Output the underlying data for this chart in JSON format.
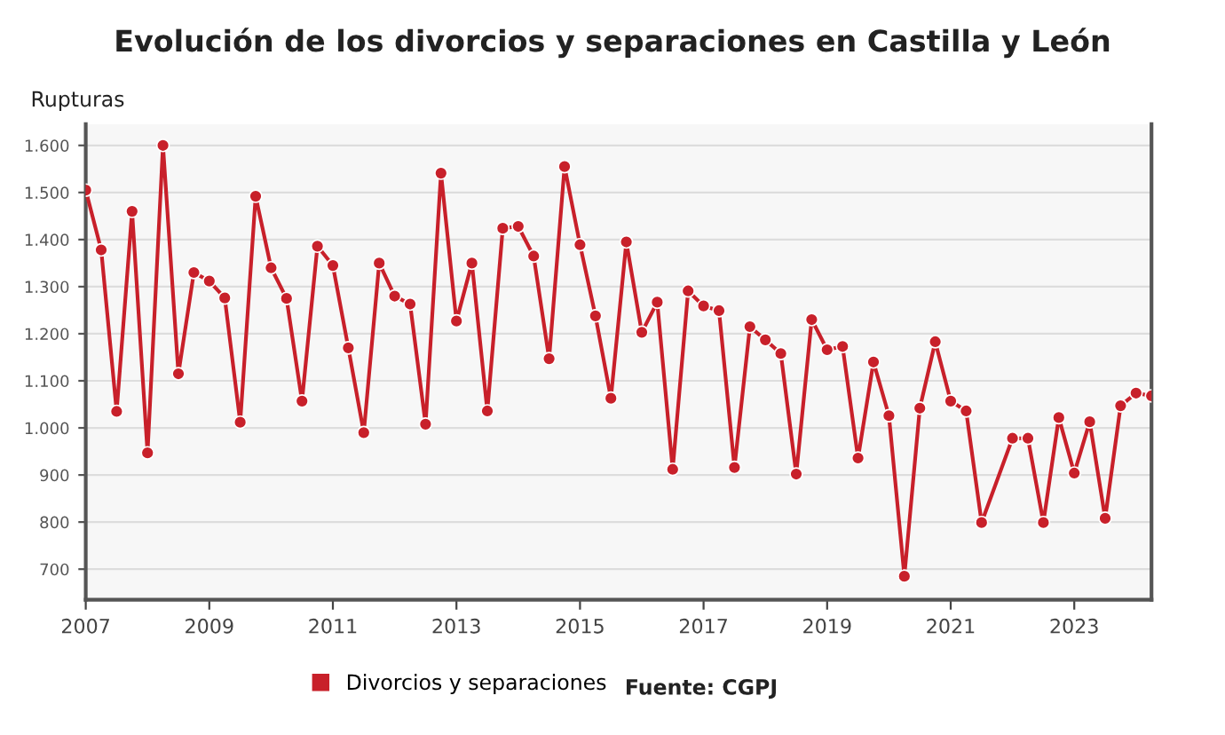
{
  "chart_data": {
    "type": "line",
    "title": "Evolución de los divorcios y separaciones en Castilla y León",
    "ylabel": "Rupturas",
    "annotations": [
      "Fuente: CGPJ"
    ],
    "xlim": [
      2007,
      2024.25
    ],
    "xticks": [
      2007,
      2009,
      2011,
      2013,
      2015,
      2017,
      2019,
      2021,
      2023
    ],
    "ylim": [
      635,
      1645
    ],
    "yticks": [
      {
        "value": 700,
        "label": "700"
      },
      {
        "value": 800,
        "label": "800"
      },
      {
        "value": 900,
        "label": "900"
      },
      {
        "value": 1000,
        "label": "1.000"
      },
      {
        "value": 1100,
        "label": "1.100"
      },
      {
        "value": 1200,
        "label": "1.200"
      },
      {
        "value": 1300,
        "label": "1.300"
      },
      {
        "value": 1400,
        "label": "1.400"
      },
      {
        "value": 1500,
        "label": "1.500"
      },
      {
        "value": 1600,
        "label": "1.600"
      }
    ],
    "grid": "y",
    "legend": "bottom",
    "marker": "circle",
    "line_style": "solid",
    "series": [
      {
        "name": "Divorcios y separaciones",
        "color": "#c8202a",
        "x": [
          2007,
          2007.25,
          2007.5,
          2007.75,
          2008,
          2008.25,
          2008.5,
          2008.75,
          2009,
          2009.25,
          2009.5,
          2009.75,
          2010,
          2010.25,
          2010.5,
          2010.75,
          2011,
          2011.25,
          2011.5,
          2011.75,
          2012,
          2012.25,
          2012.5,
          2012.75,
          2013,
          2013.25,
          2013.5,
          2013.75,
          2014,
          2014.25,
          2014.5,
          2014.75,
          2015,
          2015.25,
          2015.5,
          2015.75,
          2016,
          2016.25,
          2016.5,
          2016.75,
          2017,
          2017.25,
          2017.5,
          2017.75,
          2018,
          2018.25,
          2018.5,
          2018.75,
          2019,
          2019.25,
          2019.5,
          2019.75,
          2020,
          2020.25,
          2020.5,
          2020.75,
          2021,
          2021.25,
          2021.5,
          2022,
          2022.25,
          2022.5,
          2022.75,
          2023,
          2023.25,
          2023.5,
          2023.75,
          2024,
          2024.25
        ],
        "values": [
          1505,
          1378,
          1035,
          1460,
          947,
          1600,
          1115,
          1330,
          1312,
          1276,
          1012,
          1492,
          1340,
          1275,
          1057,
          1386,
          1345,
          1170,
          990,
          1350,
          1280,
          1263,
          1008,
          1541,
          1227,
          1350,
          1036,
          1424,
          1428,
          1365,
          1147,
          1555,
          1389,
          1238,
          1063,
          1395,
          1203,
          1267,
          912,
          1291,
          1259,
          1249,
          916,
          1215,
          1187,
          1158,
          902,
          1230,
          1166,
          1173,
          936,
          1140,
          1026,
          685,
          1042,
          1183,
          1057,
          1036,
          799,
          978,
          978,
          799,
          1022,
          904,
          1013,
          808,
          1047,
          1074,
          1068
        ]
      }
    ]
  }
}
